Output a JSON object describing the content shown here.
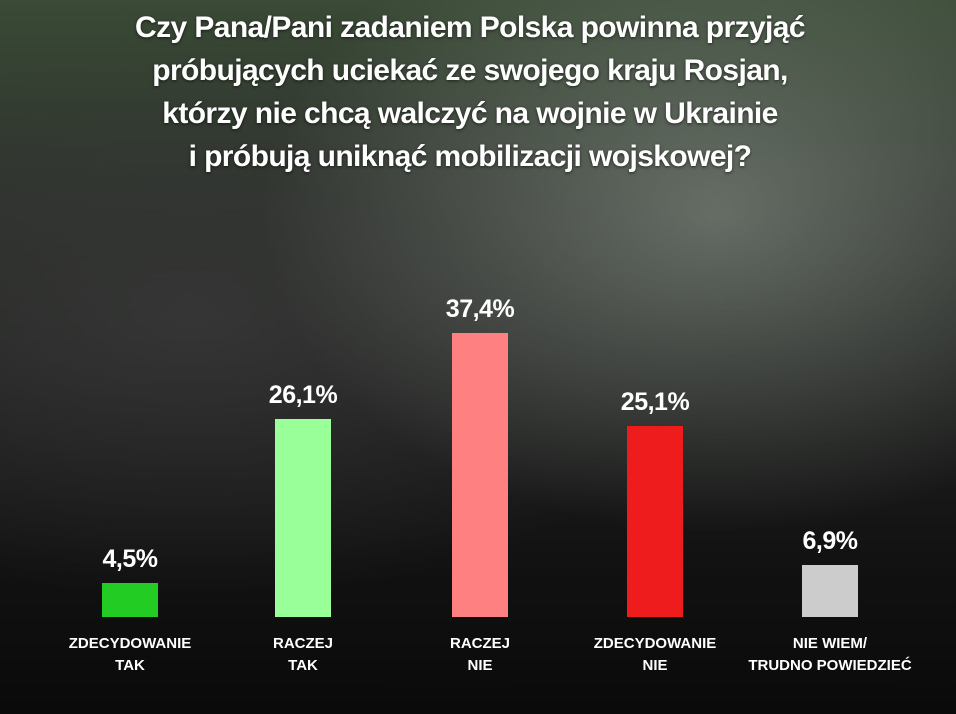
{
  "chart_data": {
    "type": "bar",
    "title": "Czy Pana/Pani zadaniem Polska powinna przyjąć\npróbujących uciekać ze swojego kraju Rosjan,\nktórzy nie chcą walczyć na wojnie w Ukrainie\ni próbują uniknąć mobilizacji wojskowej?",
    "categories": [
      "ZDECYDOWANIE\nTAK",
      "RACZEJ\nTAK",
      "RACZEJ\nNIE",
      "ZDECYDOWANIE\nNIE",
      "NIE WIEM/\nTRUDNO POWIEDZIEĆ"
    ],
    "values": [
      4.5,
      26.1,
      37.4,
      25.1,
      6.9
    ],
    "value_labels": [
      "4,5%",
      "26,1%",
      "37,4%",
      "25,1%",
      "6,9%"
    ],
    "colors": [
      "#22cc22",
      "#99ff99",
      "#ff8080",
      "#ee1c1c",
      "#cccccc"
    ]
  }
}
